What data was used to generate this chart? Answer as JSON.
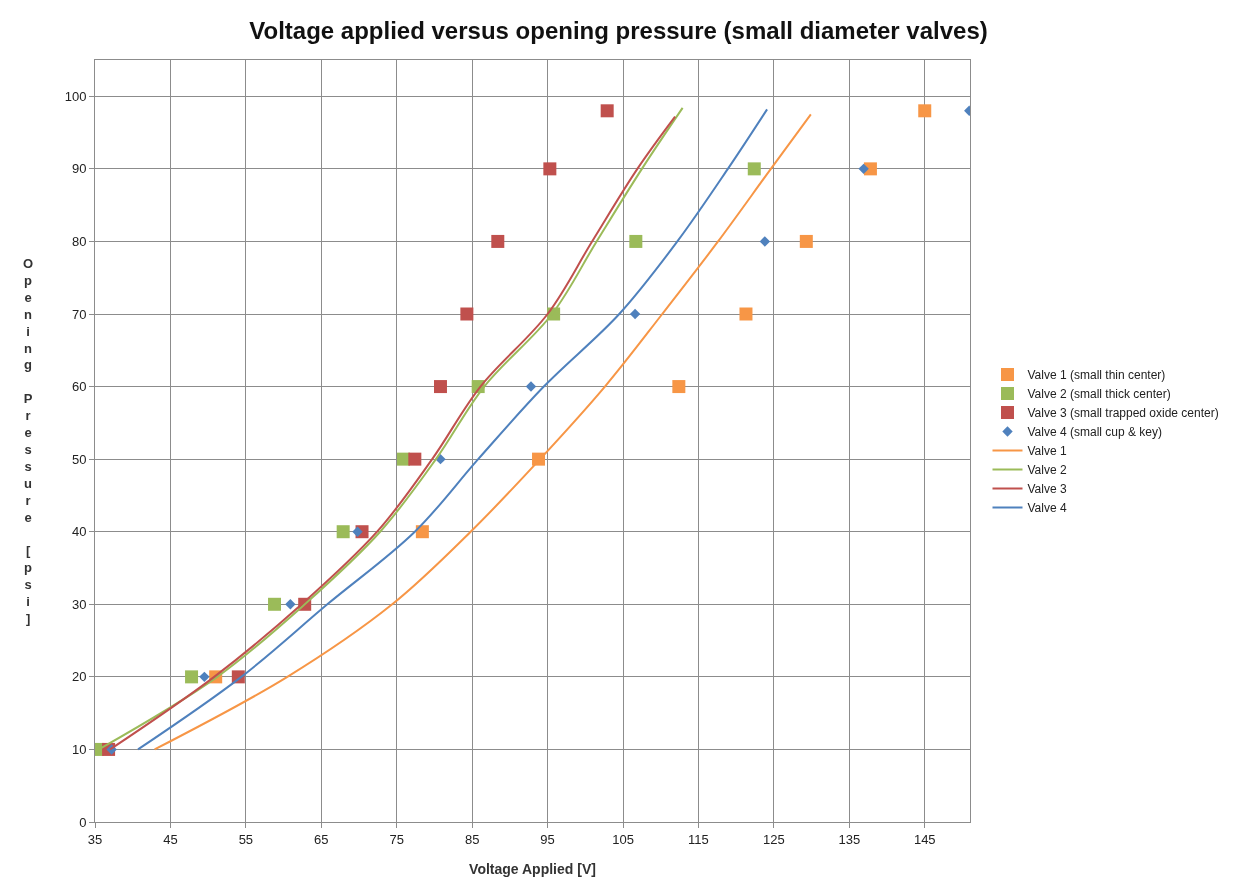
{
  "chart_data": {
    "type": "scatter",
    "title": "Voltage applied versus opening pressure (small diameter valves)",
    "xlabel": "Voltage Applied [V]",
    "ylabel": "Opening Pressure [psi]",
    "xlim": [
      35,
      151
    ],
    "ylim": [
      0,
      105
    ],
    "xticks": [
      35,
      45,
      55,
      65,
      75,
      85,
      95,
      105,
      115,
      125,
      135,
      145
    ],
    "yticks": [
      0,
      10,
      20,
      30,
      40,
      50,
      60,
      70,
      80,
      90,
      100
    ],
    "grid": true,
    "legend": "right",
    "series": [
      {
        "name": "Valve 1 (small thin center)",
        "marker": "square",
        "color": "#f79646",
        "x": [
          51.0,
          78.4,
          93.8,
          112.4,
          121.3,
          129.3,
          137.8,
          145.0
        ],
        "values": [
          20,
          40,
          50,
          60,
          70,
          80,
          90,
          98
        ]
      },
      {
        "name": "Valve 2 (small thick center)",
        "marker": "square",
        "color": "#9bbb59",
        "x": [
          35.3,
          47.8,
          58.8,
          67.9,
          75.9,
          85.8,
          95.8,
          106.7,
          122.4
        ],
        "values": [
          10,
          20,
          30,
          40,
          50,
          60,
          70,
          80,
          90
        ]
      },
      {
        "name": "Valve 3 (small trapped oxide center)",
        "marker": "square",
        "color": "#c0504d",
        "x": [
          36.8,
          54.0,
          62.8,
          70.4,
          77.4,
          80.8,
          84.3,
          88.4,
          95.3,
          102.9
        ],
        "values": [
          10,
          20,
          30,
          40,
          50,
          60,
          70,
          80,
          90,
          98
        ]
      },
      {
        "name": "Valve 4 (small cup & key)",
        "marker": "diamond",
        "color": "#4f81bd",
        "x": [
          37.2,
          49.5,
          60.9,
          69.8,
          80.8,
          92.8,
          106.6,
          123.8,
          136.9,
          150.9
        ],
        "values": [
          10,
          20,
          30,
          40,
          50,
          60,
          70,
          80,
          90,
          98
        ]
      },
      {
        "name": "Valve 1",
        "type": "line",
        "marker": "none",
        "color": "#f79646",
        "x": [
          42.9,
          60.5,
          74.4,
          84.8,
          94.0,
          102.6,
          110.2,
          117.6,
          124.6,
          129.9
        ],
        "values": [
          10,
          20,
          30,
          40,
          50,
          60,
          70,
          80,
          90,
          97.5
        ]
      },
      {
        "name": "Valve 2",
        "type": "line",
        "marker": "none",
        "color": "#9bbb59",
        "x": [
          35.5,
          51.2,
          62.8,
          72.8,
          80.2,
          86.6,
          95.6,
          101.5,
          107.5,
          112.9
        ],
        "values": [
          10,
          20,
          30,
          40,
          50,
          60,
          70,
          80,
          90,
          98.4
        ]
      },
      {
        "name": "Valve 3",
        "type": "line",
        "marker": "none",
        "color": "#c0504d",
        "x": [
          37.0,
          50.8,
          62.4,
          72.4,
          79.7,
          86.1,
          95.0,
          100.9,
          106.9,
          111.9
        ],
        "values": [
          10,
          20,
          30,
          40,
          50,
          60,
          70,
          80,
          90,
          97.2
        ]
      },
      {
        "name": "Valve 4",
        "type": "line",
        "marker": "none",
        "color": "#4f81bd",
        "x": [
          40.7,
          54.4,
          65.8,
          77.4,
          85.8,
          94.5,
          104.5,
          112.2,
          118.9,
          124.1
        ],
        "values": [
          10,
          20,
          30,
          40,
          50,
          60,
          70,
          80,
          90,
          98.2
        ]
      }
    ]
  }
}
